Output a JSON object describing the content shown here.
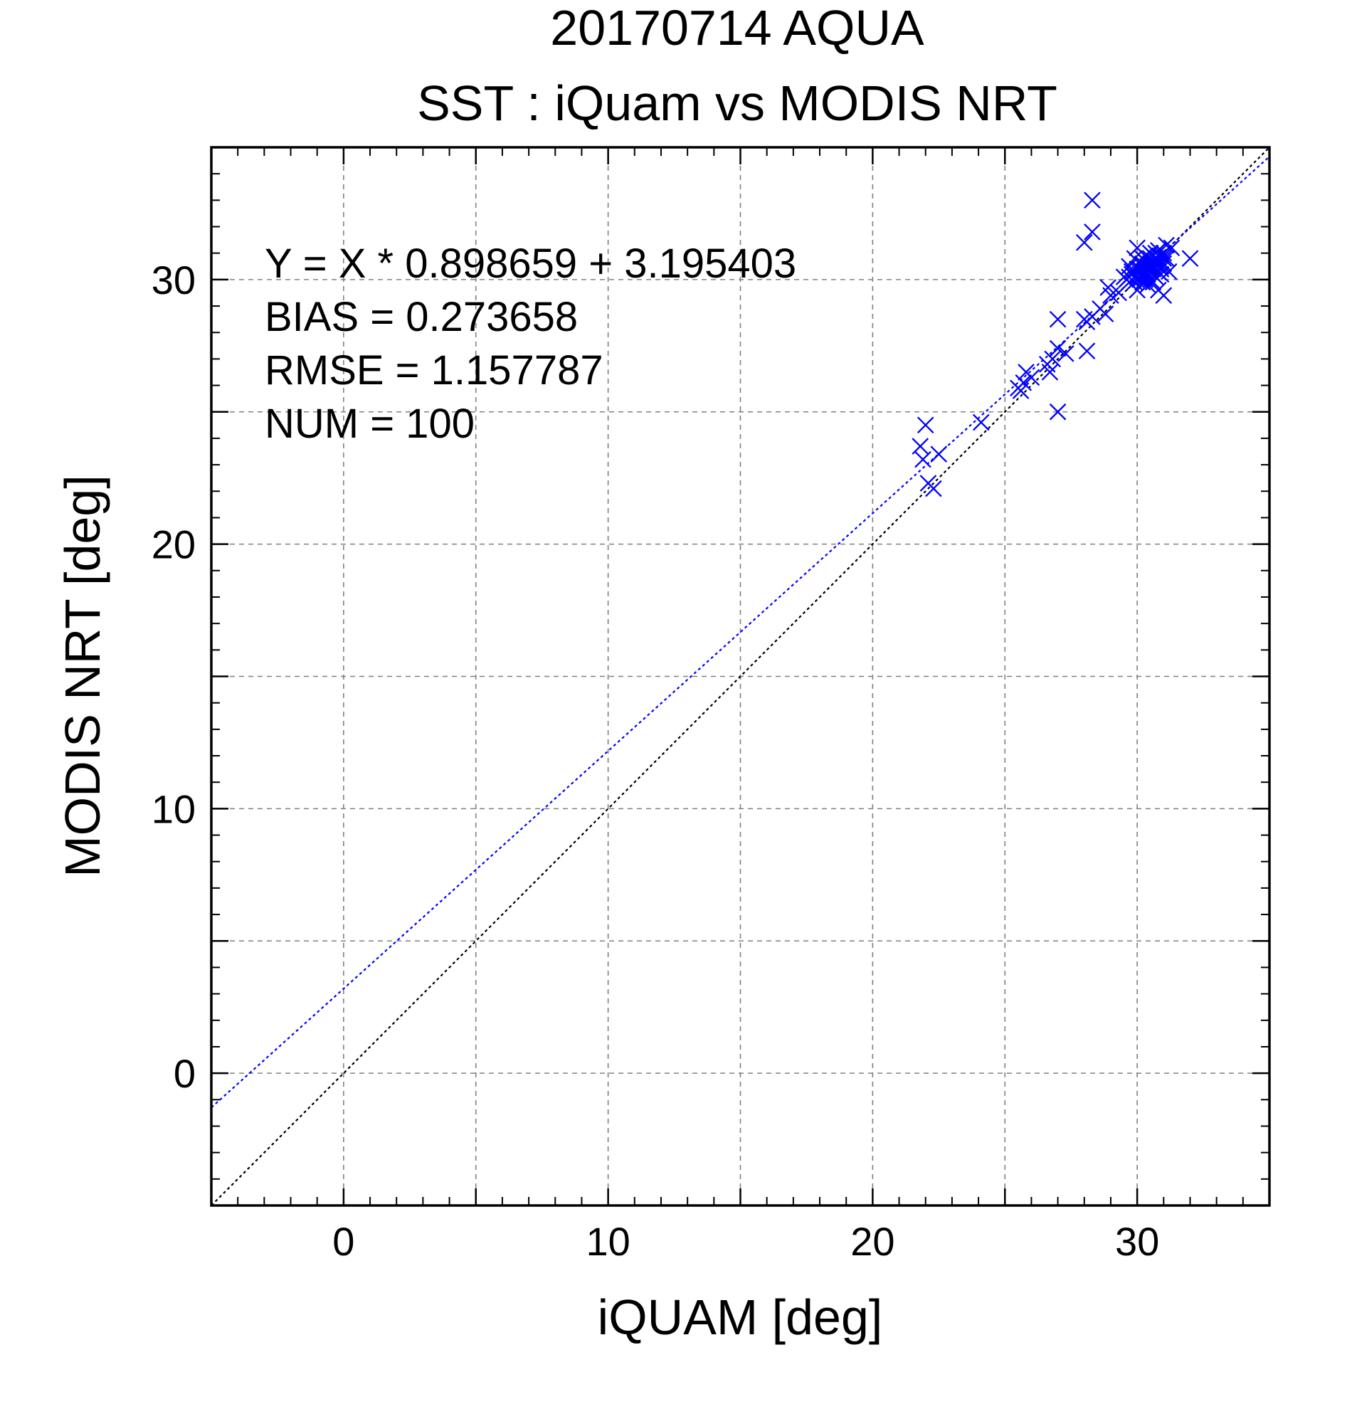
{
  "chart_data": {
    "type": "scatter",
    "title": "20170714 AQUA",
    "subtitle": "SST : iQuam vs MODIS NRT",
    "xlabel": "iQUAM [deg]",
    "ylabel": "MODIS NRT [deg]",
    "xlim": [
      -5,
      35
    ],
    "ylim": [
      -5,
      35
    ],
    "x_ticks": [
      0,
      10,
      20,
      30
    ],
    "y_ticks": [
      0,
      10,
      20,
      30
    ],
    "grid": true,
    "stats": {
      "equation": "Y = X * 0.898659 + 3.195403",
      "bias": "BIAS = 0.273658",
      "rmse": "RMSE = 1.157787",
      "num": "NUM = 100"
    },
    "colors": {
      "points": "#0000ff",
      "fit_line": "#0000ff",
      "one_to_one_line": "#000000",
      "grid": "#808080"
    },
    "fit_line": {
      "slope": 0.898659,
      "intercept": 3.195403
    },
    "one_to_one_line": {
      "slope": 1,
      "intercept": 0
    },
    "series": [
      {
        "marker": "x",
        "points": [
          [
            28.3,
            33.0
          ],
          [
            28.0,
            31.4
          ],
          [
            28.3,
            31.8
          ],
          [
            21.8,
            23.7
          ],
          [
            22.0,
            24.5
          ],
          [
            21.9,
            23.2
          ],
          [
            22.3,
            22.1
          ],
          [
            22.1,
            22.3
          ],
          [
            22.5,
            23.4
          ],
          [
            24.1,
            24.6
          ],
          [
            25.5,
            25.9
          ],
          [
            25.7,
            26.1
          ],
          [
            25.8,
            26.5
          ],
          [
            25.6,
            25.8
          ],
          [
            26.0,
            26.3
          ],
          [
            26.6,
            26.8
          ],
          [
            26.7,
            26.5
          ],
          [
            26.8,
            27.0
          ],
          [
            27.0,
            27.4
          ],
          [
            27.0,
            28.5
          ],
          [
            27.0,
            25.0
          ],
          [
            27.3,
            27.2
          ],
          [
            28.1,
            28.4
          ],
          [
            28.0,
            28.5
          ],
          [
            28.1,
            27.3
          ],
          [
            28.3,
            28.6
          ],
          [
            28.6,
            28.9
          ],
          [
            28.8,
            28.7
          ],
          [
            28.9,
            29.7
          ],
          [
            29.0,
            29.4
          ],
          [
            29.3,
            29.5
          ],
          [
            29.5,
            30.1
          ],
          [
            29.6,
            30.0
          ],
          [
            29.7,
            30.5
          ],
          [
            29.8,
            30.2
          ],
          [
            29.9,
            29.9
          ],
          [
            29.9,
            30.8
          ],
          [
            30.0,
            30.4
          ],
          [
            30.0,
            29.6
          ],
          [
            30.0,
            31.2
          ],
          [
            30.1,
            30.0
          ],
          [
            30.1,
            30.6
          ],
          [
            30.1,
            30.2
          ],
          [
            30.2,
            30.8
          ],
          [
            30.2,
            30.3
          ],
          [
            30.2,
            29.9
          ],
          [
            30.3,
            30.5
          ],
          [
            30.3,
            30.1
          ],
          [
            30.3,
            30.7
          ],
          [
            30.3,
            30.0
          ],
          [
            30.4,
            30.4
          ],
          [
            30.4,
            30.8
          ],
          [
            30.4,
            30.2
          ],
          [
            30.4,
            29.8
          ],
          [
            30.5,
            30.6
          ],
          [
            30.5,
            30.3
          ],
          [
            30.5,
            31.0
          ],
          [
            30.5,
            30.0
          ],
          [
            30.6,
            30.5
          ],
          [
            30.6,
            30.2
          ],
          [
            30.6,
            30.9
          ],
          [
            30.6,
            29.9
          ],
          [
            30.7,
            30.6
          ],
          [
            30.7,
            30.4
          ],
          [
            30.7,
            31.0
          ],
          [
            30.7,
            30.1
          ],
          [
            30.8,
            30.7
          ],
          [
            30.8,
            30.3
          ],
          [
            30.8,
            31.1
          ],
          [
            30.8,
            29.6
          ],
          [
            30.9,
            30.5
          ],
          [
            30.9,
            30.9
          ],
          [
            30.9,
            30.2
          ],
          [
            31.0,
            31.0
          ],
          [
            31.0,
            30.6
          ],
          [
            31.0,
            29.4
          ],
          [
            31.1,
            31.3
          ],
          [
            31.1,
            30.8
          ],
          [
            31.2,
            30.3
          ],
          [
            31.3,
            31.2
          ],
          [
            32.0,
            30.8
          ],
          [
            30.2,
            30.6
          ],
          [
            30.4,
            30.5
          ],
          [
            30.6,
            30.7
          ],
          [
            30.3,
            30.3
          ],
          [
            30.5,
            30.4
          ],
          [
            29.8,
            30.3
          ],
          [
            30.0,
            30.1
          ],
          [
            30.2,
            30.1
          ],
          [
            30.4,
            30.6
          ],
          [
            30.6,
            30.4
          ],
          [
            30.1,
            30.4
          ],
          [
            30.7,
            30.8
          ],
          [
            30.9,
            30.4
          ],
          [
            29.9,
            30.1
          ],
          [
            30.3,
            30.9
          ],
          [
            30.5,
            30.8
          ],
          [
            30.8,
            30.5
          ],
          [
            31.0,
            30.8
          ],
          [
            29.7,
            30.1
          ]
        ]
      }
    ]
  }
}
